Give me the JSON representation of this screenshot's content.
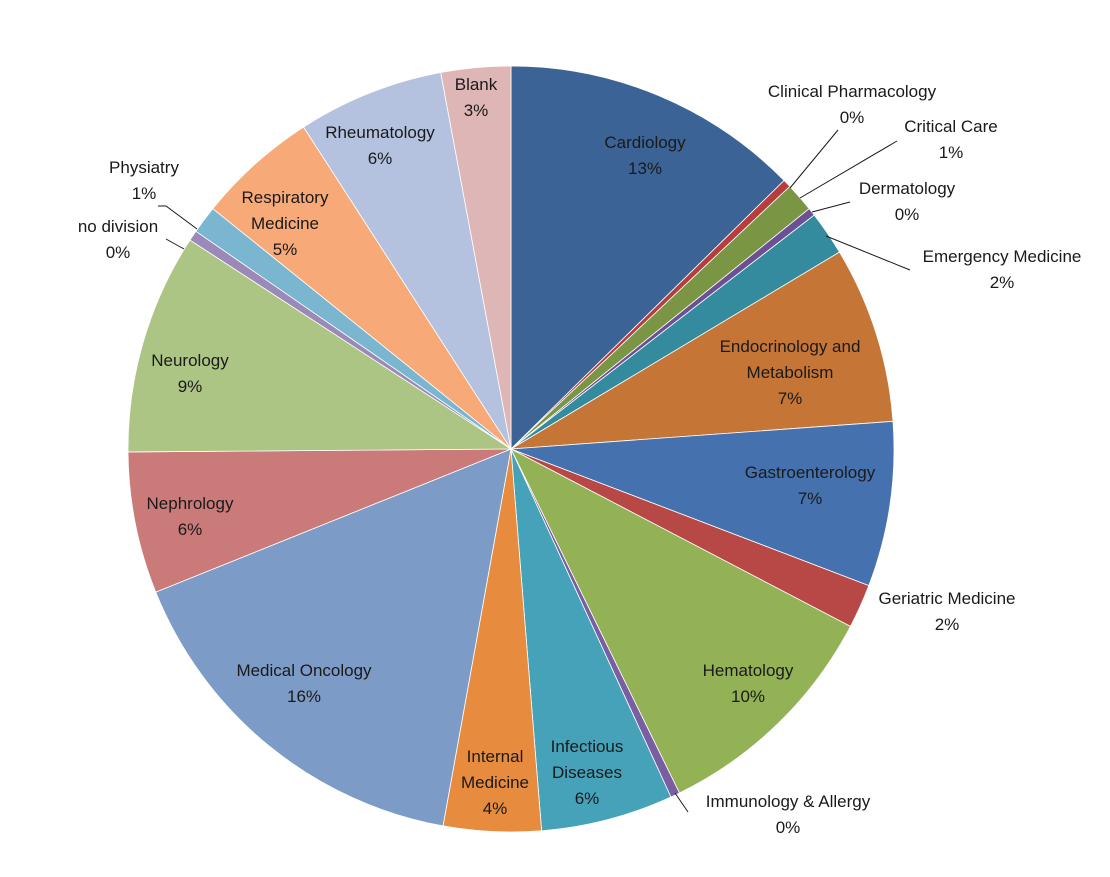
{
  "chart_data": {
    "type": "pie",
    "title": "",
    "start_angle_deg": 0,
    "direction": "clockwise",
    "legend": "none",
    "slices": [
      {
        "name": "Cardiology",
        "value": 12.9,
        "label": "13%",
        "color": "#3b6395"
      },
      {
        "name": "Clinical Pharmacology",
        "value": 0.35,
        "label": "0%",
        "color": "#b63d3b"
      },
      {
        "name": "Critical Care",
        "value": 1.25,
        "label": "1%",
        "color": "#7a9645"
      },
      {
        "name": "Dermatology",
        "value": 0.35,
        "label": "0%",
        "color": "#6b5193"
      },
      {
        "name": "Emergency Medicine",
        "value": 1.9,
        "label": "2%",
        "color": "#348b9e"
      },
      {
        "name": "Endocrinology and Metabolism",
        "value": 7.6,
        "label": "7%",
        "color": "#c57535"
      },
      {
        "name": "Gastroenterology",
        "value": 7.1,
        "label": "7%",
        "color": "#4572ae"
      },
      {
        "name": "Geriatric Medicine",
        "value": 1.9,
        "label": "2%",
        "color": "#b84845"
      },
      {
        "name": "Hematology",
        "value": 10.3,
        "label": "10%",
        "color": "#93b155"
      },
      {
        "name": "Immunology & Allergy",
        "value": 0.4,
        "label": "0%",
        "color": "#7a5ea2"
      },
      {
        "name": "Infectious Diseases",
        "value": 5.7,
        "label": "6%",
        "color": "#45a2b9"
      },
      {
        "name": "Internal Medicine",
        "value": 4.2,
        "label": "4%",
        "color": "#e78c3f"
      },
      {
        "name": "Medical Oncology",
        "value": 16.4,
        "label": "16%",
        "color": "#7d9bc7"
      },
      {
        "name": "Nephrology",
        "value": 6.1,
        "label": "6%",
        "color": "#ca7b79"
      },
      {
        "name": "Neurology",
        "value": 9.5,
        "label": "9%",
        "color": "#adc584"
      },
      {
        "name": "no division",
        "value": 0.45,
        "label": "0%",
        "color": "#9b8ab8"
      },
      {
        "name": "Physiatry",
        "value": 1.2,
        "label": "1%",
        "color": "#7ab6cf"
      },
      {
        "name": "Respiratory Medicine",
        "value": 5.2,
        "label": "5%",
        "color": "#f7aa78"
      },
      {
        "name": "Rheumatology",
        "value": 6.3,
        "label": "6%",
        "color": "#b4c2df"
      },
      {
        "name": "Blank",
        "value": 3.0,
        "label": "3%",
        "color": "#dfb6b6"
      }
    ]
  }
}
